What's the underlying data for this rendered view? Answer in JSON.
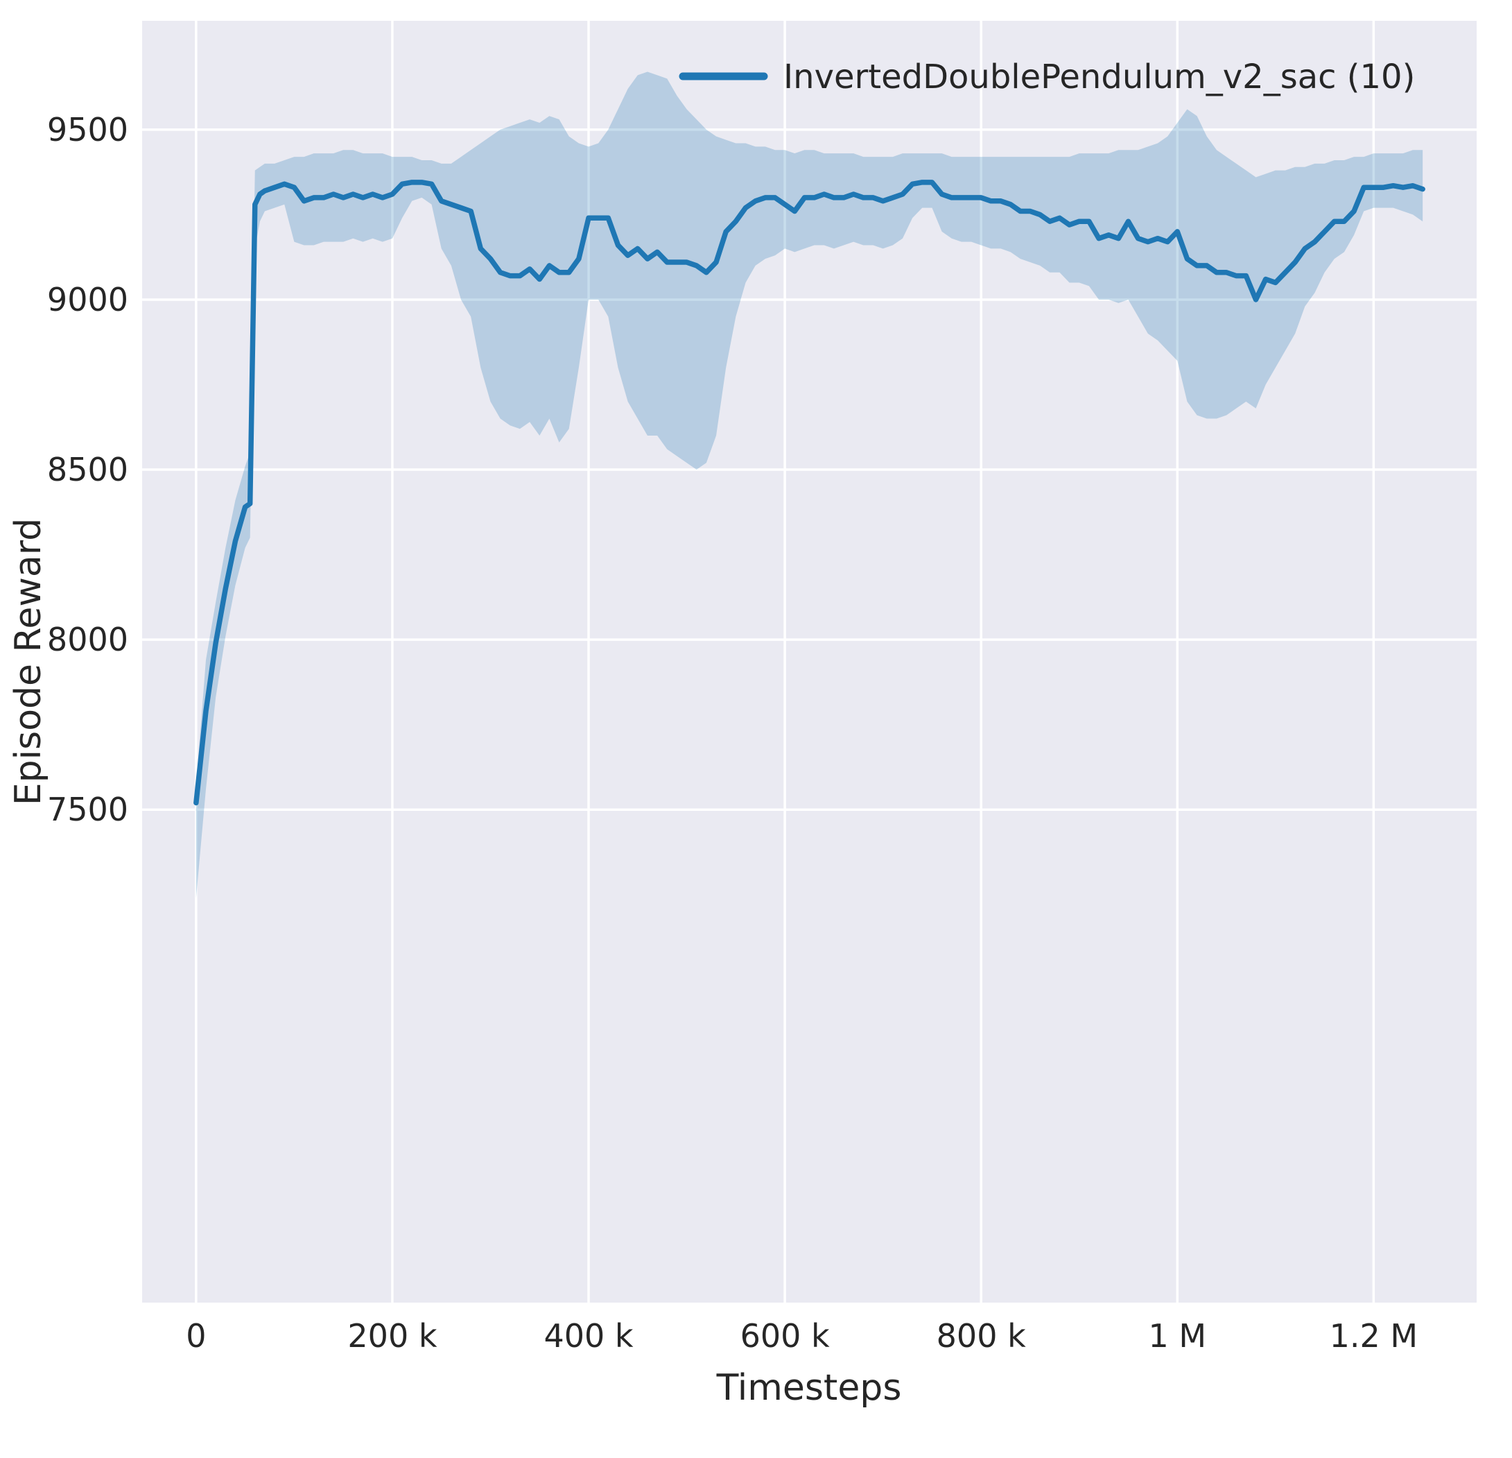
{
  "figure": {
    "background": "#ffffff"
  },
  "chart_data": {
    "type": "line",
    "title": "",
    "xlabel": "Timesteps",
    "ylabel": "Episode Reward",
    "legend": [
      "InvertedDoublePendulum_v2_sac (10)"
    ],
    "legend_position": "upper center-right",
    "grid": true,
    "axes_bg": "#eaeaf2",
    "grid_color": "#ffffff",
    "text_color": "#262626",
    "line_color": "#1f77b4",
    "band_opacity": 0.25,
    "xlim": [
      -55000,
      1305000
    ],
    "ylim": [
      6050,
      9820
    ],
    "xticks": {
      "values": [
        0,
        200000,
        400000,
        600000,
        800000,
        1000000,
        1200000
      ],
      "labels": [
        "0",
        "200 k",
        "400 k",
        "600 k",
        "800 k",
        "1 M",
        "1.2 M"
      ]
    },
    "yticks": {
      "values": [
        7500,
        8000,
        8500,
        9000,
        9500
      ],
      "labels": [
        "7500",
        "8000",
        "8500",
        "9000",
        "9500"
      ]
    },
    "series": [
      {
        "name": "InvertedDoublePendulum_v2_sac (10)",
        "x": [
          0,
          10000,
          20000,
          30000,
          40000,
          50000,
          55000,
          60000,
          65000,
          70000,
          80000,
          90000,
          100000,
          110000,
          120000,
          130000,
          140000,
          150000,
          160000,
          170000,
          180000,
          190000,
          200000,
          210000,
          220000,
          230000,
          240000,
          250000,
          260000,
          270000,
          280000,
          290000,
          300000,
          310000,
          320000,
          330000,
          340000,
          350000,
          360000,
          370000,
          380000,
          390000,
          400000,
          410000,
          420000,
          430000,
          440000,
          450000,
          460000,
          470000,
          480000,
          490000,
          500000,
          510000,
          520000,
          530000,
          540000,
          550000,
          560000,
          570000,
          580000,
          590000,
          600000,
          610000,
          620000,
          630000,
          640000,
          650000,
          660000,
          670000,
          680000,
          690000,
          700000,
          710000,
          720000,
          730000,
          740000,
          750000,
          760000,
          770000,
          780000,
          790000,
          800000,
          810000,
          820000,
          830000,
          840000,
          850000,
          860000,
          870000,
          880000,
          890000,
          900000,
          910000,
          920000,
          930000,
          940000,
          950000,
          960000,
          970000,
          980000,
          990000,
          1000000,
          1010000,
          1020000,
          1030000,
          1040000,
          1050000,
          1060000,
          1070000,
          1080000,
          1090000,
          1100000,
          1110000,
          1120000,
          1130000,
          1140000,
          1150000,
          1160000,
          1170000,
          1180000,
          1190000,
          1200000,
          1210000,
          1220000,
          1230000,
          1240000,
          1250000
        ],
        "mean": [
          7520,
          7790,
          7990,
          8150,
          8290,
          8390,
          8400,
          9280,
          9310,
          9320,
          9330,
          9340,
          9330,
          9290,
          9300,
          9300,
          9310,
          9300,
          9310,
          9300,
          9310,
          9300,
          9310,
          9340,
          9345,
          9345,
          9340,
          9290,
          9280,
          9270,
          9260,
          9150,
          9120,
          9080,
          9070,
          9070,
          9090,
          9060,
          9100,
          9080,
          9080,
          9120,
          9240,
          9240,
          9240,
          9160,
          9130,
          9150,
          9120,
          9140,
          9110,
          9110,
          9110,
          9100,
          9080,
          9110,
          9200,
          9230,
          9270,
          9290,
          9300,
          9300,
          9280,
          9260,
          9300,
          9300,
          9310,
          9300,
          9300,
          9310,
          9300,
          9300,
          9290,
          9300,
          9310,
          9340,
          9345,
          9345,
          9310,
          9300,
          9300,
          9300,
          9300,
          9290,
          9290,
          9280,
          9260,
          9260,
          9250,
          9230,
          9240,
          9220,
          9230,
          9230,
          9180,
          9190,
          9180,
          9230,
          9180,
          9170,
          9180,
          9170,
          9200,
          9120,
          9100,
          9100,
          9080,
          9080,
          9070,
          9070,
          9000,
          9060,
          9050,
          9080,
          9110,
          9150,
          9170,
          9200,
          9230,
          9230,
          9260,
          9330,
          9330,
          9330,
          9335,
          9330,
          9335,
          9325
        ],
        "lower": [
          7240,
          7560,
          7830,
          8010,
          8160,
          8270,
          8300,
          9150,
          9230,
          9260,
          9270,
          9280,
          9170,
          9160,
          9160,
          9170,
          9170,
          9170,
          9180,
          9170,
          9180,
          9170,
          9180,
          9240,
          9290,
          9300,
          9280,
          9150,
          9100,
          9000,
          8950,
          8800,
          8700,
          8650,
          8630,
          8620,
          8640,
          8600,
          8650,
          8580,
          8620,
          8800,
          9000,
          9000,
          8950,
          8800,
          8700,
          8650,
          8600,
          8600,
          8560,
          8540,
          8520,
          8500,
          8520,
          8600,
          8800,
          8950,
          9050,
          9100,
          9120,
          9130,
          9150,
          9140,
          9150,
          9160,
          9160,
          9150,
          9160,
          9170,
          9160,
          9160,
          9150,
          9160,
          9180,
          9240,
          9270,
          9270,
          9200,
          9180,
          9170,
          9170,
          9160,
          9150,
          9150,
          9140,
          9120,
          9110,
          9100,
          9080,
          9080,
          9050,
          9050,
          9040,
          9000,
          9000,
          8990,
          9000,
          8950,
          8900,
          8880,
          8850,
          8820,
          8700,
          8660,
          8650,
          8650,
          8660,
          8680,
          8700,
          8680,
          8750,
          8800,
          8850,
          8900,
          8980,
          9020,
          9080,
          9120,
          9140,
          9190,
          9260,
          9270,
          9270,
          9270,
          9260,
          9250,
          9230
        ],
        "upper": [
          7570,
          7940,
          8110,
          8270,
          8410,
          8510,
          8550,
          9380,
          9390,
          9400,
          9400,
          9410,
          9420,
          9420,
          9430,
          9430,
          9430,
          9440,
          9440,
          9430,
          9430,
          9430,
          9420,
          9420,
          9420,
          9410,
          9410,
          9400,
          9400,
          9420,
          9440,
          9460,
          9480,
          9500,
          9510,
          9520,
          9530,
          9520,
          9540,
          9530,
          9480,
          9460,
          9450,
          9460,
          9500,
          9560,
          9620,
          9660,
          9670,
          9660,
          9650,
          9600,
          9560,
          9530,
          9500,
          9480,
          9470,
          9460,
          9460,
          9450,
          9450,
          9440,
          9440,
          9430,
          9440,
          9440,
          9430,
          9430,
          9430,
          9430,
          9420,
          9420,
          9420,
          9420,
          9430,
          9430,
          9430,
          9430,
          9430,
          9420,
          9420,
          9420,
          9420,
          9420,
          9420,
          9420,
          9420,
          9420,
          9420,
          9420,
          9420,
          9420,
          9430,
          9430,
          9430,
          9430,
          9440,
          9440,
          9440,
          9450,
          9460,
          9480,
          9520,
          9560,
          9540,
          9480,
          9440,
          9420,
          9400,
          9380,
          9360,
          9370,
          9380,
          9380,
          9390,
          9390,
          9400,
          9400,
          9410,
          9410,
          9420,
          9420,
          9430,
          9430,
          9430,
          9430,
          9440,
          9440
        ]
      }
    ]
  }
}
